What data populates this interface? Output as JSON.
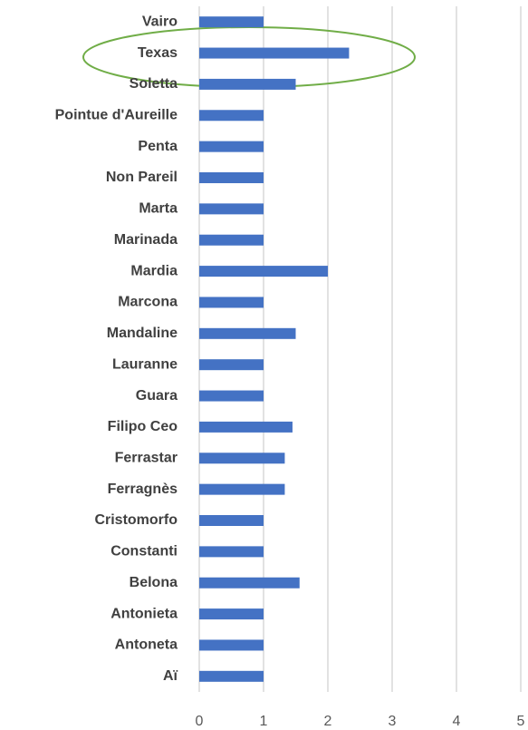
{
  "chart_data": {
    "type": "bar",
    "orientation": "horizontal",
    "categories": [
      "Vairo",
      "Texas",
      "Soletta",
      "Pointue d'Aureille",
      "Penta",
      "Non Pareil",
      "Marta",
      "Marinada",
      "Mardia",
      "Marcona",
      "Mandaline",
      "Lauranne",
      "Guara",
      "Filipo Ceo",
      "Ferrastar",
      "Ferragnès",
      "Cristomorfo",
      "Constanti",
      "Belona",
      "Antonieta",
      "Antoneta",
      "Aï"
    ],
    "values": [
      1,
      2.33,
      1.5,
      1,
      1,
      1,
      1,
      1,
      2,
      1,
      1.5,
      1,
      1,
      1.45,
      1.33,
      1.33,
      1,
      1,
      1.56,
      1,
      1,
      1
    ],
    "color": "#4472c4",
    "xlim": [
      0,
      5
    ],
    "xticks": [
      0,
      1,
      2,
      3,
      4,
      5
    ],
    "grid": true
  }
}
